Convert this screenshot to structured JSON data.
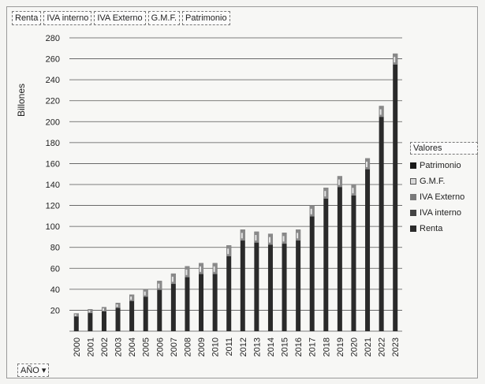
{
  "fields": [
    "Renta",
    "IVA interno",
    "IVA Externo",
    "G.M.F.",
    "Patrimonio"
  ],
  "ylabel": "Billones",
  "legend": {
    "title": "Valores",
    "items": [
      {
        "name": "Patrimonio",
        "color": "#1a1a1a"
      },
      {
        "name": "G.M.F.",
        "color": "#d9d9d9"
      },
      {
        "name": "IVA Externo",
        "color": "#7a7a7a"
      },
      {
        "name": "IVA interno",
        "color": "#444444"
      },
      {
        "name": "Renta",
        "color": "#2b2b2b"
      }
    ]
  },
  "axis_button": "AÑO",
  "chart_data": {
    "type": "bar",
    "stacked": true,
    "categories": [
      "2000",
      "2001",
      "2002",
      "2003",
      "2004",
      "2005",
      "2006",
      "2007",
      "2008",
      "2009",
      "2010",
      "2011",
      "2012",
      "2013",
      "2014",
      "2015",
      "2016",
      "2017",
      "2018",
      "2019",
      "2020",
      "2021",
      "2022",
      "2023"
    ],
    "totals": [
      17,
      21,
      23,
      27,
      35,
      40,
      48,
      55,
      62,
      65,
      65,
      82,
      97,
      95,
      93,
      94,
      97,
      120,
      137,
      148,
      140,
      165,
      215,
      265
    ],
    "yticks": [
      20,
      40,
      60,
      80,
      100,
      120,
      140,
      160,
      180,
      200,
      220,
      240,
      260,
      280
    ],
    "ylim": [
      0,
      280
    ],
    "ylabel": "Billones",
    "legend_position": "right",
    "grid": true
  }
}
